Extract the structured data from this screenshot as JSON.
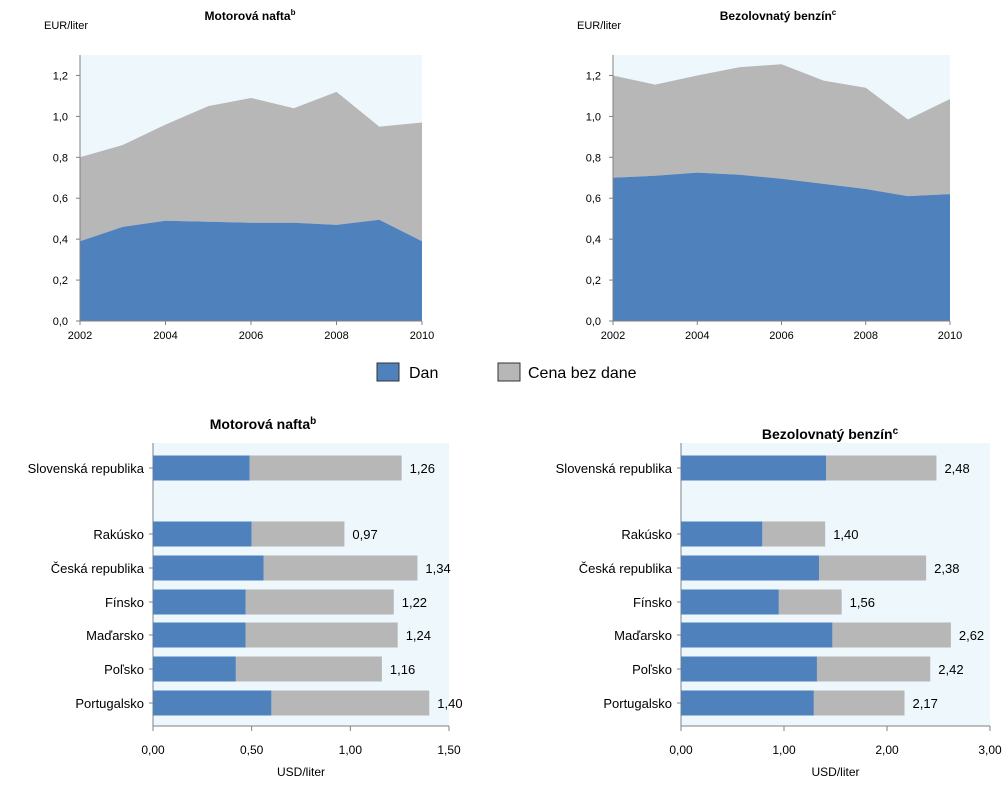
{
  "legend": {
    "items": [
      {
        "label": "Dan",
        "color": "#4f81bd"
      },
      {
        "label": "Cena bez dane",
        "color": "#b7b7b7"
      }
    ]
  },
  "colors": {
    "plot_bg": "#eef7fb",
    "tax": "#4f81bd",
    "price": "#b7b7b7",
    "axis": "#808080"
  },
  "chart_data": [
    {
      "type": "area",
      "title": "Motorová nafta",
      "title_sup": "b",
      "ylabel": "EUR/liter",
      "x": [
        2002,
        2003,
        2004,
        2005,
        2006,
        2007,
        2008,
        2009,
        2010
      ],
      "xticks": [
        "2002",
        "2004",
        "2006",
        "2008",
        "2010"
      ],
      "yticks": [
        "0,0",
        "0,2",
        "0,4",
        "0,6",
        "0,8",
        "1,0",
        "1,2"
      ],
      "ylim": [
        0,
        1.3
      ],
      "series": [
        {
          "name": "Dan",
          "values": [
            0.39,
            0.46,
            0.49,
            0.485,
            0.48,
            0.48,
            0.47,
            0.495,
            0.39
          ]
        },
        {
          "name": "Cena bez dane",
          "values": [
            0.41,
            0.4,
            0.47,
            0.565,
            0.61,
            0.56,
            0.65,
            0.455,
            0.58
          ]
        }
      ],
      "stacked": true
    },
    {
      "type": "area",
      "title": "Bezolovnatý benzín",
      "title_sup": "c",
      "ylabel": "EUR/liter",
      "x": [
        2002,
        2003,
        2004,
        2005,
        2006,
        2007,
        2008,
        2009,
        2010
      ],
      "xticks": [
        "2002",
        "2004",
        "2006",
        "2008",
        "2010"
      ],
      "yticks": [
        "0,0",
        "0,2",
        "0,4",
        "0,6",
        "0,8",
        "1,0",
        "1,2"
      ],
      "ylim": [
        0,
        1.3
      ],
      "series": [
        {
          "name": "Dan",
          "values": [
            0.7,
            0.71,
            0.725,
            0.715,
            0.695,
            0.67,
            0.645,
            0.61,
            0.62
          ]
        },
        {
          "name": "Cena bez dane",
          "values": [
            0.5,
            0.445,
            0.475,
            0.525,
            0.56,
            0.505,
            0.495,
            0.375,
            0.465
          ]
        }
      ],
      "stacked": true
    },
    {
      "type": "bar",
      "orientation": "horizontal",
      "stacked": true,
      "title": "Motorová nafta",
      "title_sup": "b",
      "xlabel": "USD/liter",
      "xticks": [
        "0,00",
        "0,50",
        "1,00",
        "1,50"
      ],
      "xlim": [
        0,
        1.5
      ],
      "categories": [
        "Slovenská republika",
        "Rakúsko",
        "Česká republika",
        "Fínsko",
        "Maďarsko",
        "Poľsko",
        "Portugalsko"
      ],
      "series": [
        {
          "name": "Dan",
          "values": [
            0.49,
            0.5,
            0.56,
            0.47,
            0.47,
            0.42,
            0.6
          ]
        },
        {
          "name": "Cena bez dane",
          "values": [
            0.77,
            0.47,
            0.78,
            0.75,
            0.77,
            0.74,
            0.8
          ]
        }
      ],
      "totals": [
        "1,26",
        "0,97",
        "1,34",
        "1,22",
        "1,24",
        "1,16",
        "1,40"
      ]
    },
    {
      "type": "bar",
      "orientation": "horizontal",
      "stacked": true,
      "title": "Bezolovnatý benzín",
      "title_sup": "c",
      "xlabel": "USD/liter",
      "xticks": [
        "0,00",
        "1,00",
        "2,00",
        "3,00"
      ],
      "xlim": [
        0,
        3
      ],
      "categories": [
        "Slovenská republika",
        "Rakúsko",
        "Česká republika",
        "Fínsko",
        "Maďarsko",
        "Poľsko",
        "Portugalsko"
      ],
      "series": [
        {
          "name": "Dan",
          "values": [
            1.41,
            0.79,
            1.34,
            0.95,
            1.47,
            1.32,
            1.29
          ]
        },
        {
          "name": "Cena bez dane",
          "values": [
            1.07,
            0.61,
            1.04,
            0.61,
            1.15,
            1.1,
            0.88
          ]
        }
      ],
      "totals": [
        "2,48",
        "1,40",
        "2,38",
        "1,56",
        "2,62",
        "2,42",
        "2,17"
      ]
    }
  ]
}
